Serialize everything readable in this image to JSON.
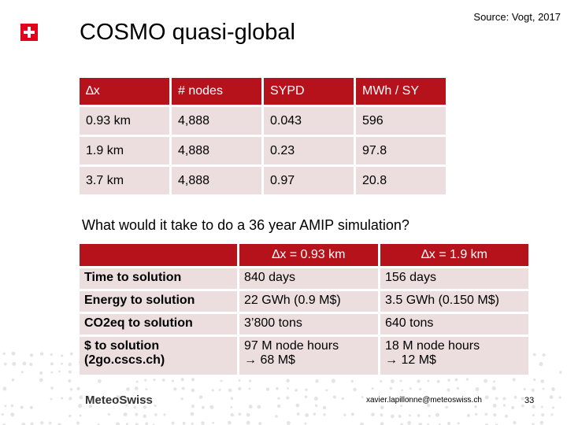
{
  "header": {
    "title": "COSMO quasi-global",
    "source": "Source: Vogt, 2017"
  },
  "table1": {
    "headers": [
      "∆x",
      "# nodes",
      "SYPD",
      "MWh / SY"
    ],
    "rows": [
      [
        "0.93 km",
        "4,888",
        "0.043",
        "596"
      ],
      [
        "1.9 km",
        "4,888",
        "0.23",
        "97.8"
      ],
      [
        "3.7 km",
        "4,888",
        "0.97",
        "20.8"
      ]
    ]
  },
  "question": "What would it take to do a 36 year AMIP simulation?",
  "table2": {
    "headers": [
      "",
      "∆x = 0.93 km",
      "∆x = 1.9 km"
    ],
    "rows": [
      {
        "label": "Time to solution",
        "c1": "840 days",
        "c2": "156 days"
      },
      {
        "label": "Energy to solution",
        "c1": "22 GWh (0.9 M$)",
        "c2": "3.5 GWh (0.150 M$)"
      },
      {
        "label": "CO2eq to solution",
        "c1": "3’800 tons",
        "c2": "640 tons"
      },
      {
        "label_line1": "$ to solution",
        "label_line2": "(2go.cscs.ch)",
        "c1_line1": "97 M node hours",
        "c1_line2": "→ 68 M$",
        "c2_line1": "18 M node hours",
        "c2_line2": "→ 12 M$"
      }
    ]
  },
  "footer": {
    "logo": "MeteoSwiss",
    "email": "xavier.lapillonne@meteoswiss.ch",
    "page": "33"
  },
  "colors": {
    "accent": "#b5121b",
    "cell": "#ecdede",
    "flag": "#e2001a"
  }
}
